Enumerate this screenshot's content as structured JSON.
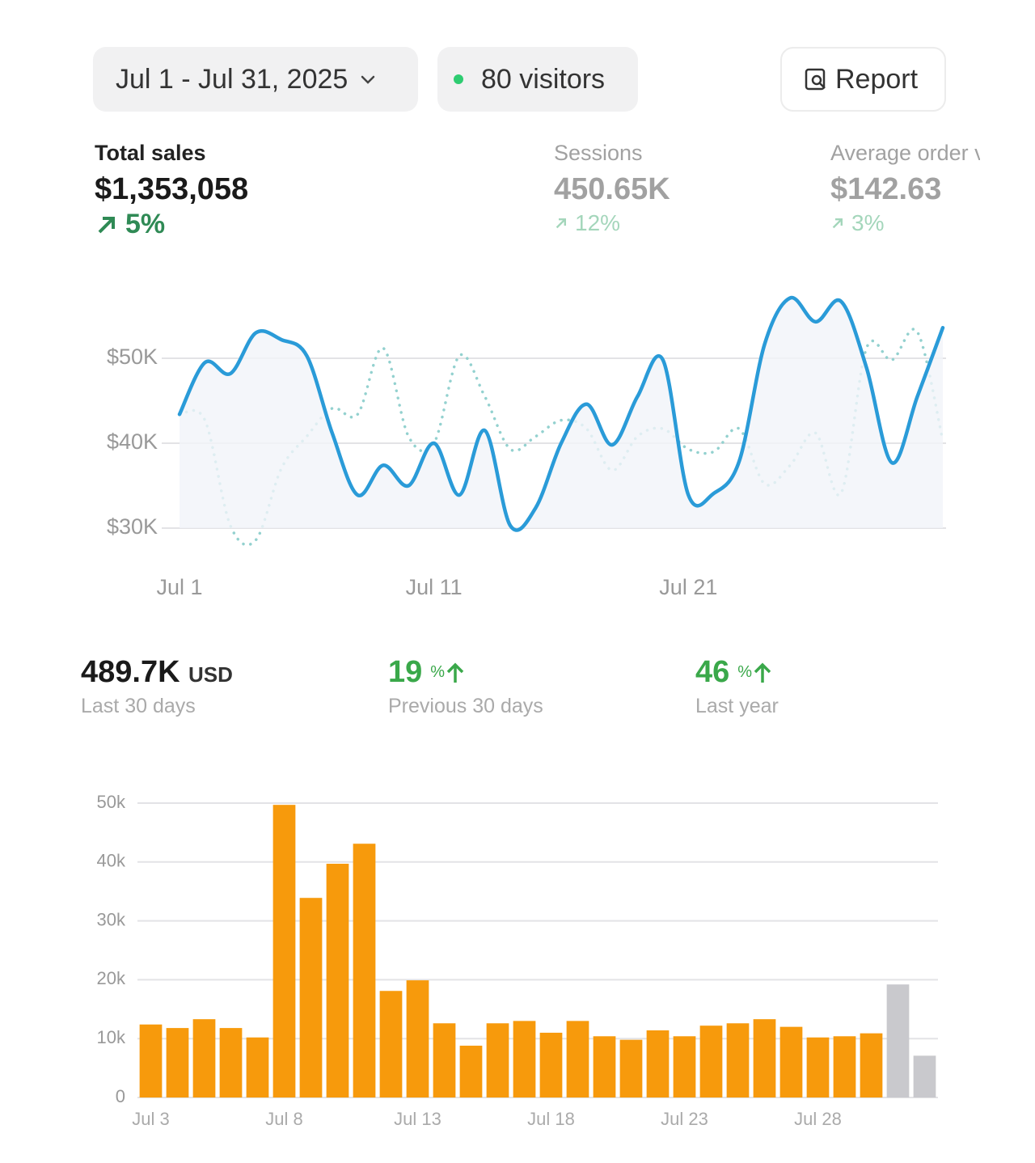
{
  "header": {
    "date_range": "Jul 1 - Jul 31, 2025",
    "visitors": "80 visitors",
    "report": "Report"
  },
  "metrics": [
    {
      "label": "Total sales",
      "value": "$1,353,058",
      "change": "5%"
    },
    {
      "label": "Sessions",
      "value": "450.65K",
      "change": "12%"
    },
    {
      "label": "Average order value",
      "value": "$142.63",
      "change": "3%"
    }
  ],
  "summary": [
    {
      "value": "489.7K",
      "unit": "USD",
      "label": "Last 30 days"
    },
    {
      "value": "19",
      "unit": "%",
      "label": "Previous 30 days"
    },
    {
      "value": "46",
      "unit": "%",
      "label": "Last year"
    }
  ],
  "chart_data": [
    {
      "type": "line",
      "x": [
        1,
        2,
        3,
        4,
        5,
        6,
        7,
        8,
        9,
        10,
        11,
        12,
        13,
        14,
        15,
        16,
        17,
        18,
        19,
        20,
        21,
        22,
        23,
        24,
        25,
        26,
        27,
        28,
        29,
        30,
        31
      ],
      "xlim": [
        1,
        31
      ],
      "xticks": [
        {
          "value": 1,
          "label": "Jul 1"
        },
        {
          "value": 11,
          "label": "Jul 11"
        },
        {
          "value": 21,
          "label": "Jul 21"
        }
      ],
      "ylim": [
        27000,
        58000
      ],
      "yticks": [
        {
          "value": 30000,
          "label": "$30K"
        },
        {
          "value": 40000,
          "label": "$40K"
        },
        {
          "value": 50000,
          "label": "$50K"
        }
      ],
      "grid": true,
      "series": [
        {
          "color": "#2a9bd8",
          "style": "solid",
          "values": [
            43400,
            49500,
            48200,
            53000,
            52200,
            50300,
            41200,
            33900,
            37400,
            35000,
            40000,
            33900,
            41500,
            30300,
            32400,
            40000,
            44600,
            39800,
            45500,
            49800,
            33900,
            34100,
            37900,
            51700,
            57100,
            54300,
            56700,
            48900,
            37700,
            45500,
            53600
          ]
        },
        {
          "color": "#93d1cf",
          "style": "dotted",
          "values": [
            43400,
            42700,
            30300,
            28600,
            37000,
            40800,
            44100,
            43400,
            51200,
            40800,
            40000,
            50300,
            45500,
            39300,
            40800,
            42700,
            41700,
            36800,
            40800,
            41700,
            39300,
            39000,
            41700,
            35200,
            37400,
            41200,
            34100,
            51200,
            49800,
            53100,
            40300
          ]
        }
      ]
    },
    {
      "type": "bar",
      "categories": [
        "Jul 3",
        null,
        null,
        null,
        null,
        "Jul 8",
        null,
        null,
        null,
        null,
        "Jul 13",
        null,
        null,
        null,
        null,
        "Jul 18",
        null,
        null,
        null,
        null,
        "Jul 23",
        null,
        null,
        null,
        null,
        "Jul 28",
        null,
        null,
        null,
        null
      ],
      "values": [
        12400,
        11800,
        13300,
        11800,
        10200,
        49700,
        33900,
        39700,
        43100,
        18100,
        19900,
        12600,
        8800,
        12600,
        13000,
        11000,
        13000,
        10400,
        9800,
        11400,
        10400,
        12200,
        12600,
        13300,
        12000,
        10200,
        10400,
        10900,
        19200,
        7100
      ],
      "colors": [
        "#f79a0c",
        "#f79a0c",
        "#f79a0c",
        "#f79a0c",
        "#f79a0c",
        "#f79a0c",
        "#f79a0c",
        "#f79a0c",
        "#f79a0c",
        "#f79a0c",
        "#f79a0c",
        "#f79a0c",
        "#f79a0c",
        "#f79a0c",
        "#f79a0c",
        "#f79a0c",
        "#f79a0c",
        "#f79a0c",
        "#f79a0c",
        "#f79a0c",
        "#f79a0c",
        "#f79a0c",
        "#f79a0c",
        "#f79a0c",
        "#f79a0c",
        "#f79a0c",
        "#f79a0c",
        "#f79a0c",
        "#c9c9cd",
        "#c9c9cd"
      ],
      "ylim": [
        0,
        50000
      ],
      "yticks": [
        0,
        {
          "value": 10000,
          "label": "10k"
        },
        {
          "value": 20000,
          "label": "20k"
        },
        {
          "value": 30000,
          "label": "30k"
        },
        {
          "value": 40000,
          "label": "40k"
        },
        {
          "value": 50000,
          "label": "50k"
        }
      ],
      "grid": true
    }
  ]
}
